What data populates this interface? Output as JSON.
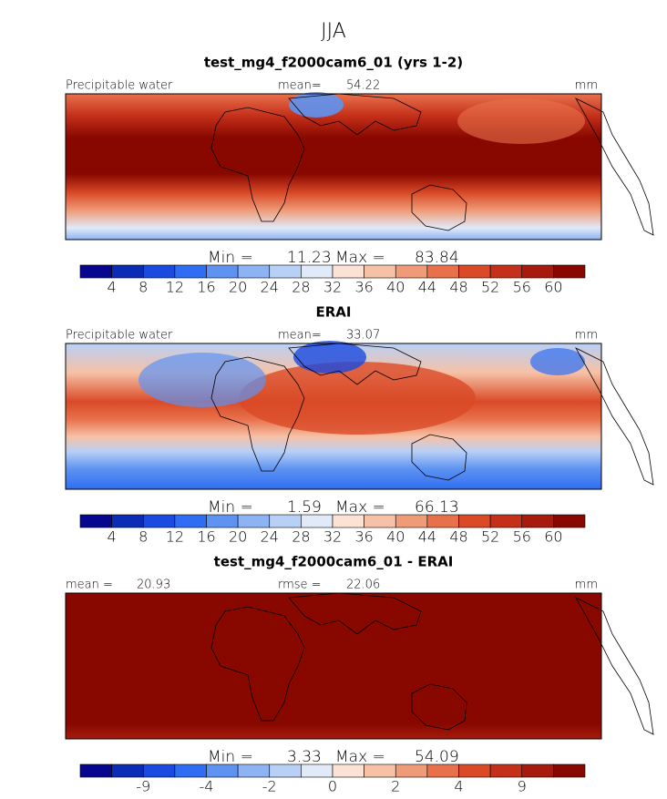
{
  "figure_title": "JJA",
  "colorbar_colors": [
    "#06068f",
    "#0b2cb5",
    "#1a4ae0",
    "#2f6ef2",
    "#5e93f2",
    "#8db3f3",
    "#b9d0f6",
    "#e0eaf8",
    "#fbe2d4",
    "#f6c1a6",
    "#ef9b78",
    "#e8714b",
    "#da4a27",
    "#c5301a",
    "#a61b0d",
    "#880800"
  ],
  "panels": [
    {
      "title": "test_mg4_f2000cam6_01 (yrs 1-2)",
      "left_label": "Precipitable water",
      "stat_label": "mean=",
      "stat_value": 54.22,
      "units": "mm",
      "min_label": "Min =",
      "min": 11.23,
      "max_label": "Max =",
      "max": 83.84,
      "colorbar_ticks": [
        4,
        8,
        12,
        16,
        20,
        24,
        28,
        32,
        36,
        40,
        44,
        48,
        52,
        56,
        60
      ]
    },
    {
      "title": "ERAI",
      "left_label": "Precipitable water",
      "stat_label": "mean=",
      "stat_value": 33.07,
      "units": "mm",
      "min_label": "Min =",
      "min": 1.59,
      "max_label": "Max =",
      "max": 66.13,
      "colorbar_ticks": [
        4,
        8,
        12,
        16,
        20,
        24,
        28,
        32,
        36,
        40,
        44,
        48,
        52,
        56,
        60
      ]
    },
    {
      "title": "test_mg4_f2000cam6_01 - ERAI",
      "left_label": "mean =",
      "left_value": 20.93,
      "stat_label": "rmse =",
      "stat_value": 22.06,
      "units": "mm",
      "min_label": "Min =",
      "min": 3.33,
      "max_label": "Max =",
      "max": 54.09,
      "colorbar_ticks": [
        -9,
        -4,
        -2,
        0,
        2,
        4,
        9
      ]
    }
  ]
}
